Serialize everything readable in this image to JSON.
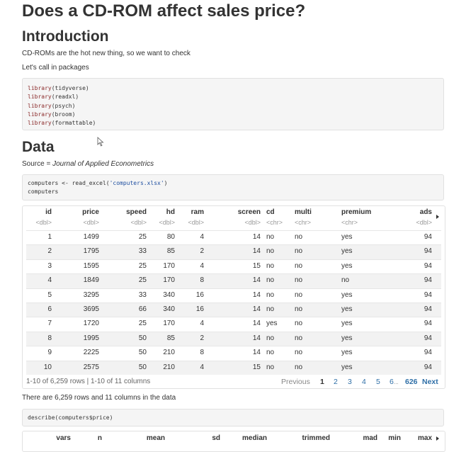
{
  "header": {
    "title": "Does a CD-ROM affect sales price?"
  },
  "intro": {
    "heading": "Introduction",
    "paragraphs": [
      "CD-ROMs are the hot new thing, so we want to check",
      "Let's call in packages"
    ],
    "code": [
      [
        "library",
        "(tidyverse)"
      ],
      [
        "library",
        "(readxl)"
      ],
      [
        "library",
        "(psych)"
      ],
      [
        "library",
        "(broom)"
      ],
      [
        "library",
        "(formattable)"
      ]
    ]
  },
  "data_section": {
    "heading": "Data",
    "source_label": "Source = ",
    "source_name": "Journal of Applied Econometrics",
    "code": [
      [
        "computers <- read_excel(",
        "'computers.xlsx'",
        ")"
      ],
      [
        "computers"
      ]
    ]
  },
  "table": {
    "columns": [
      {
        "name": "id",
        "type": "<dbl>"
      },
      {
        "name": "price",
        "type": "<dbl>"
      },
      {
        "name": "speed",
        "type": "<dbl>"
      },
      {
        "name": "hd",
        "type": "<dbl>"
      },
      {
        "name": "ram",
        "type": "<dbl>"
      },
      {
        "name": "screen",
        "type": "<dbl>"
      },
      {
        "name": "cd",
        "type": "<chr>"
      },
      {
        "name": "multi",
        "type": "<chr>"
      },
      {
        "name": "premium",
        "type": "<chr>"
      },
      {
        "name": "ads",
        "type": "<dbl>"
      }
    ],
    "rows": [
      [
        1,
        1499,
        25,
        80,
        4,
        14,
        "no",
        "no",
        "yes",
        94
      ],
      [
        2,
        1795,
        33,
        85,
        2,
        14,
        "no",
        "no",
        "yes",
        94
      ],
      [
        3,
        1595,
        25,
        170,
        4,
        15,
        "no",
        "no",
        "yes",
        94
      ],
      [
        4,
        1849,
        25,
        170,
        8,
        14,
        "no",
        "no",
        "no",
        94
      ],
      [
        5,
        3295,
        33,
        340,
        16,
        14,
        "no",
        "no",
        "yes",
        94
      ],
      [
        6,
        3695,
        66,
        340,
        16,
        14,
        "no",
        "no",
        "yes",
        94
      ],
      [
        7,
        1720,
        25,
        170,
        4,
        14,
        "yes",
        "no",
        "yes",
        94
      ],
      [
        8,
        1995,
        50,
        85,
        2,
        14,
        "no",
        "no",
        "yes",
        94
      ],
      [
        9,
        2225,
        50,
        210,
        8,
        14,
        "no",
        "no",
        "yes",
        94
      ],
      [
        10,
        2575,
        50,
        210,
        4,
        15,
        "no",
        "no",
        "yes",
        94
      ]
    ],
    "footer": "1-10 of 6,259 rows | 1-10 of 11 columns",
    "pagination": [
      "Previous",
      "1",
      "2",
      "3",
      "4",
      "5",
      "6",
      "...",
      "626",
      "Next"
    ]
  },
  "summary": {
    "text": "There are 6,259 rows and 11 columns in the data",
    "code": "describe(computers$price)",
    "columns": [
      "vars",
      "n",
      "mean",
      "sd",
      "median",
      "trimmed",
      "mad",
      "min",
      "max"
    ]
  }
}
